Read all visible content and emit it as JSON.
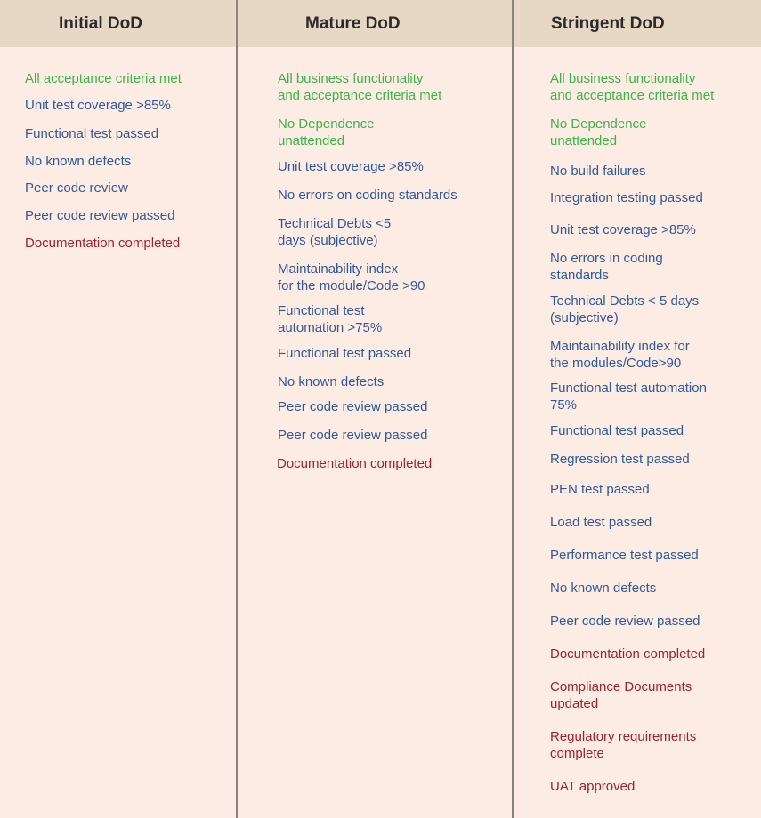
{
  "colors": {
    "header_bg": "#e6d8c5",
    "body_bg": "#fdece3",
    "green": "#3bb54a",
    "blue": "#2e5a9c",
    "red": "#a0232b"
  },
  "columns": [
    {
      "title": "Initial DoD",
      "items": [
        {
          "text": "All acceptance criteria met",
          "color": "green"
        },
        {
          "text": "Unit test coverage >85%",
          "color": "blue"
        },
        {
          "text": "Functional test passed",
          "color": "blue"
        },
        {
          "text": "No known defects",
          "color": "blue"
        },
        {
          "text": "Peer code review",
          "color": "blue"
        },
        {
          "text": "Peer code review passed",
          "color": "blue"
        },
        {
          "text": "Documentation completed",
          "color": "red"
        }
      ]
    },
    {
      "title": "Mature DoD",
      "items": [
        {
          "text": "All business functionality\nand acceptance criteria  met",
          "color": "green"
        },
        {
          "text": "No Dependence\nunattended",
          "color": "green"
        },
        {
          "text": "Unit test coverage >85%",
          "color": "blue"
        },
        {
          "text": "No errors on coding standards",
          "color": "blue"
        },
        {
          "text": "Technical Debts <5\ndays (subjective)",
          "color": "blue"
        },
        {
          "text": "Maintainability index\nfor the module/Code >90",
          "color": "blue"
        },
        {
          "text": "Functional test\nautomation >75%",
          "color": "blue"
        },
        {
          "text": "Functional test passed",
          "color": "blue"
        },
        {
          "text": "No known defects",
          "color": "blue"
        },
        {
          "text": "Peer code review passed",
          "color": "blue"
        },
        {
          "text": "Peer code review passed",
          "color": "blue"
        },
        {
          "text": "Documentation completed",
          "color": "red"
        }
      ]
    },
    {
      "title": "Stringent DoD",
      "items": [
        {
          "text": "All business functionality\nand acceptance criteria met",
          "color": "green"
        },
        {
          "text": "No Dependence\nunattended",
          "color": "green"
        },
        {
          "text": "No build failures",
          "color": "blue"
        },
        {
          "text": "Integration testing passed",
          "color": "blue"
        },
        {
          "text": "Unit test coverage >85%",
          "color": "blue"
        },
        {
          "text": "No errors in coding\nstandards",
          "color": "blue"
        },
        {
          "text": "Technical Debts < 5 days\n(subjective)",
          "color": "blue"
        },
        {
          "text": "Maintainability index for\nthe modules/Code>90",
          "color": "blue"
        },
        {
          "text": "Functional test automation\n75%",
          "color": "blue"
        },
        {
          "text": "Functional test passed",
          "color": "blue"
        },
        {
          "text": "Regression test passed",
          "color": "blue"
        },
        {
          "text": "PEN test passed",
          "color": "blue"
        },
        {
          "text": "Load test passed",
          "color": "blue"
        },
        {
          "text": "Performance test passed",
          "color": "blue"
        },
        {
          "text": "No known defects",
          "color": "blue"
        },
        {
          "text": "Peer code review passed",
          "color": "blue"
        },
        {
          "text": "Documentation completed",
          "color": "red"
        },
        {
          "text": "Compliance Documents\nupdated",
          "color": "red"
        },
        {
          "text": "Regulatory requirements\ncomplete",
          "color": "red"
        },
        {
          "text": "UAT approved",
          "color": "red"
        }
      ]
    }
  ]
}
